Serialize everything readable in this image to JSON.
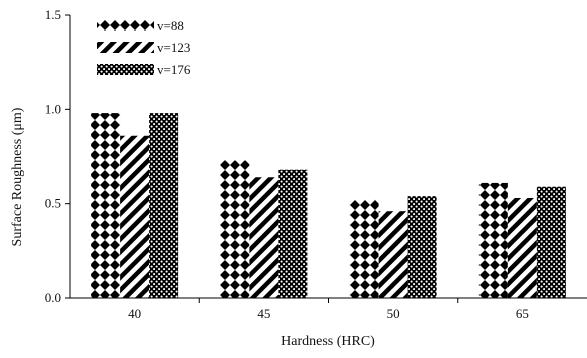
{
  "chart_data": {
    "type": "bar",
    "title": "",
    "xlabel": "Hardness (HRC)",
    "ylabel": "Surface Roughness (μm)",
    "categories": [
      "40",
      "45",
      "50",
      "65"
    ],
    "ylim": [
      0,
      1.5
    ],
    "yticks": [
      "0.0",
      "0.5",
      "1.0",
      "1.5"
    ],
    "grid": false,
    "legend_position": "top-left",
    "series": [
      {
        "name": "v=88",
        "values": [
          0.98,
          0.73,
          0.52,
          0.61
        ],
        "pattern": "diamond-checker"
      },
      {
        "name": "v=123",
        "values": [
          0.86,
          0.64,
          0.46,
          0.53
        ],
        "pattern": "diagonal-stripes"
      },
      {
        "name": "v=176",
        "values": [
          0.98,
          0.68,
          0.54,
          0.59
        ],
        "pattern": "dots"
      }
    ]
  }
}
